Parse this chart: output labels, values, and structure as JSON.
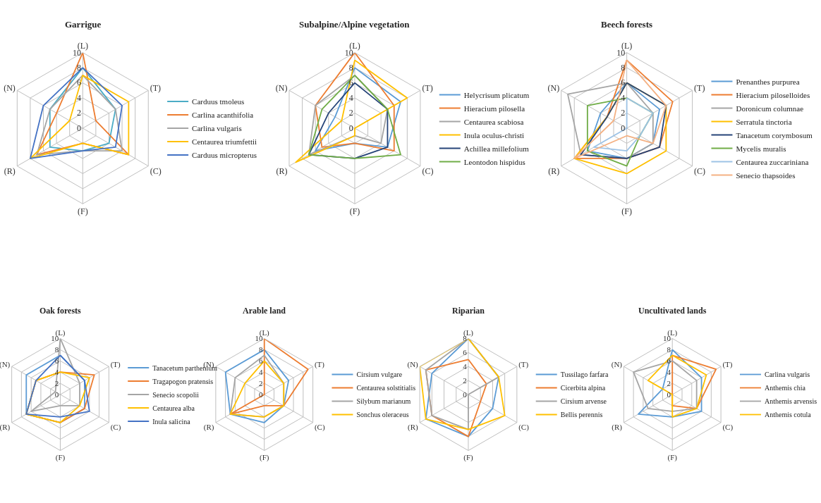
{
  "chart_data": [
    {
      "type": "radar",
      "title": "Garrigue",
      "categories": [
        "(L)",
        "(T)",
        "(C)",
        "(F)",
        "(R)",
        "(N)"
      ],
      "ylim": [
        0,
        10
      ],
      "yticks": [
        0,
        2,
        4,
        6,
        8,
        10
      ],
      "grid": true,
      "legend": "right",
      "series": [
        {
          "name": "Carduus tmoleus",
          "color": "#4bacc6",
          "values": [
            8,
            5,
            4,
            3,
            5,
            5
          ]
        },
        {
          "name": "Carlina acanthifolia",
          "color": "#ed7d31",
          "values": [
            10,
            2,
            7,
            2,
            7,
            4
          ]
        },
        {
          "name": "Carlina vulgaris",
          "color": "#a5a5a5",
          "values": [
            7,
            5,
            6,
            3,
            7,
            5
          ]
        },
        {
          "name": "Centaurea triumfettii",
          "color": "#ffc000",
          "values": [
            7,
            7,
            7,
            2,
            8,
            2
          ]
        },
        {
          "name": "Carduus micropterus",
          "color": "#4472c4",
          "values": [
            8,
            6,
            5,
            3,
            8,
            6
          ]
        }
      ]
    },
    {
      "type": "radar",
      "title": "Subalpine/Alpine vegetation",
      "categories": [
        "(L)",
        "(T)",
        "(C)",
        "(F)",
        "(R)",
        "(N)"
      ],
      "ylim": [
        0,
        10
      ],
      "yticks": [
        0,
        2,
        4,
        6,
        8,
        10
      ],
      "grid": true,
      "legend": "right",
      "series": [
        {
          "name": "Helycrisum plicatum",
          "color": "#5b9bd5",
          "values": [
            8,
            7,
            5,
            2,
            6,
            3
          ]
        },
        {
          "name": "Hieracium pilosella",
          "color": "#ed7d31",
          "values": [
            10,
            6,
            6,
            2,
            5,
            6
          ]
        },
        {
          "name": "Centaurea scabiosa",
          "color": "#a5a5a5",
          "values": [
            7,
            5,
            4,
            1,
            7,
            6
          ]
        },
        {
          "name": "Inula oculus-christi",
          "color": "#ffc000",
          "values": [
            9,
            8,
            0,
            1,
            9,
            2
          ]
        },
        {
          "name": "Achillea millefolium",
          "color": "#264478",
          "values": [
            6,
            5,
            5,
            4,
            7,
            4
          ]
        },
        {
          "name": "Leontodon hispidus",
          "color": "#70ad47",
          "values": [
            7,
            5,
            7,
            4,
            7,
            5
          ]
        }
      ]
    },
    {
      "type": "radar",
      "title": "Beech forests",
      "categories": [
        "(L)",
        "(T)",
        "(C)",
        "(F)",
        "(R)",
        "(N)"
      ],
      "ylim": [
        0,
        10
      ],
      "yticks": [
        0,
        2,
        4,
        6,
        8,
        10
      ],
      "grid": true,
      "legend": "right",
      "series": [
        {
          "name": "Prenanthes purpurea",
          "color": "#5b9bd5",
          "values": [
            6,
            5,
            4,
            4,
            6,
            4
          ]
        },
        {
          "name": "Hieracium piloselloides",
          "color": "#ed7d31",
          "values": [
            9,
            7,
            5,
            4,
            8,
            3
          ]
        },
        {
          "name": "Doronicum columnae",
          "color": "#a5a5a5",
          "values": [
            6,
            4,
            4,
            4,
            7,
            9
          ]
        },
        {
          "name": "Serratula tinctoria",
          "color": "#ffc000",
          "values": [
            6,
            6,
            6,
            6,
            8,
            3
          ]
        },
        {
          "name": "Tanacetum corymbosum",
          "color": "#264478",
          "values": [
            6,
            6,
            5,
            4,
            7,
            3
          ]
        },
        {
          "name": "Mycelis muralis",
          "color": "#70ad47",
          "values": [
            4,
            4,
            2,
            5,
            6,
            6
          ]
        },
        {
          "name": "Centaurea zuccariniana",
          "color": "#9dc3e6",
          "values": [
            4,
            4,
            2,
            3,
            5,
            0
          ]
        },
        {
          "name": "Senecio thapsoides",
          "color": "#f4b183",
          "values": [
            9,
            6,
            4,
            1,
            8,
            2
          ]
        }
      ]
    },
    {
      "type": "radar",
      "title": "Oak forests",
      "categories": [
        "(L)",
        "(T)",
        "(C)",
        "(F)",
        "(R)",
        "(N)"
      ],
      "ylim": [
        0,
        10
      ],
      "yticks": [
        0,
        2,
        4,
        6,
        8,
        10
      ],
      "grid": true,
      "legend": "right",
      "series": [
        {
          "name": "Tanacetum parthenium",
          "color": "#5b9bd5",
          "values": [
            7,
            5,
            5,
            5,
            7,
            7
          ]
        },
        {
          "name": "Tragapogon pratensis",
          "color": "#ed7d31",
          "values": [
            4,
            7,
            5,
            5,
            7,
            5
          ]
        },
        {
          "name": "Senecio scopolii",
          "color": "#a5a5a5",
          "values": [
            10,
            4,
            4,
            2,
            6,
            1
          ]
        },
        {
          "name": "Centaurea alba",
          "color": "#ffc000",
          "values": [
            4,
            6,
            4,
            5,
            7,
            5
          ]
        },
        {
          "name": "Inula salicina",
          "color": "#4472c4",
          "values": [
            7,
            5,
            6,
            4,
            7,
            5
          ]
        }
      ]
    },
    {
      "type": "radar",
      "title": "Arable land",
      "categories": [
        "(L)",
        "(T)",
        "(C)",
        "(F)",
        "(R)",
        "(N)"
      ],
      "ylim": [
        0,
        10
      ],
      "yticks": [
        0,
        2,
        4,
        6,
        8,
        10
      ],
      "grid": true,
      "legend": "right",
      "series": [
        {
          "name": "Cirsium vulgare",
          "color": "#5b9bd5",
          "values": [
            8,
            5,
            4,
            5,
            7,
            8
          ]
        },
        {
          "name": "Centaurea solstitialis",
          "color": "#ed7d31",
          "values": [
            10,
            9,
            4,
            2,
            7,
            0
          ]
        },
        {
          "name": "Silybum marianum",
          "color": "#a5a5a5",
          "values": [
            7,
            4,
            4,
            4,
            7,
            6
          ]
        },
        {
          "name": "Sonchus oleraceus",
          "color": "#ffc000",
          "values": [
            6,
            4,
            4,
            4,
            7,
            4
          ]
        }
      ]
    },
    {
      "type": "radar",
      "title": "Riparian",
      "categories": [
        "(L)",
        "(T)",
        "(C)",
        "(F)",
        "(R)",
        "(N)"
      ],
      "ylim": [
        0,
        8
      ],
      "yticks": [
        0,
        2,
        4,
        6,
        8
      ],
      "grid": true,
      "legend": "right",
      "series": [
        {
          "name": "Tussilago farfara",
          "color": "#5b9bd5",
          "values": [
            8,
            5,
            4,
            6,
            7,
            6
          ]
        },
        {
          "name": "Cicerbita alpina",
          "color": "#ed7d31",
          "values": [
            5,
            3,
            2,
            6,
            6,
            7
          ]
        },
        {
          "name": "Cirsium arvense",
          "color": "#a5a5a5",
          "values": [
            8,
            5,
            0,
            5,
            6,
            7
          ]
        },
        {
          "name": "Bellis perennis",
          "color": "#ffc000",
          "values": [
            8,
            5,
            6,
            5,
            7,
            8
          ]
        }
      ]
    },
    {
      "type": "radar",
      "title": "Uncultivated lands",
      "categories": [
        "(L)",
        "(T)",
        "(C)",
        "(F)",
        "(R)",
        "(N)"
      ],
      "ylim": [
        0,
        10
      ],
      "yticks": [
        0,
        2,
        4,
        6,
        8,
        10
      ],
      "grid": true,
      "legend": "right",
      "series": [
        {
          "name": "Carlina vulgaris",
          "color": "#5b9bd5",
          "values": [
            8,
            6,
            6,
            4,
            7,
            2
          ]
        },
        {
          "name": "Anthemis chia",
          "color": "#ed7d31",
          "values": [
            7,
            9,
            5,
            2,
            0,
            0
          ]
        },
        {
          "name": "Anthemis arvensis",
          "color": "#a5a5a5",
          "values": [
            6,
            5,
            5,
            3,
            5,
            8
          ]
        },
        {
          "name": "Anthemis cotula",
          "color": "#ffc000",
          "values": [
            7,
            7,
            5,
            4,
            0,
            5
          ]
        }
      ]
    }
  ]
}
